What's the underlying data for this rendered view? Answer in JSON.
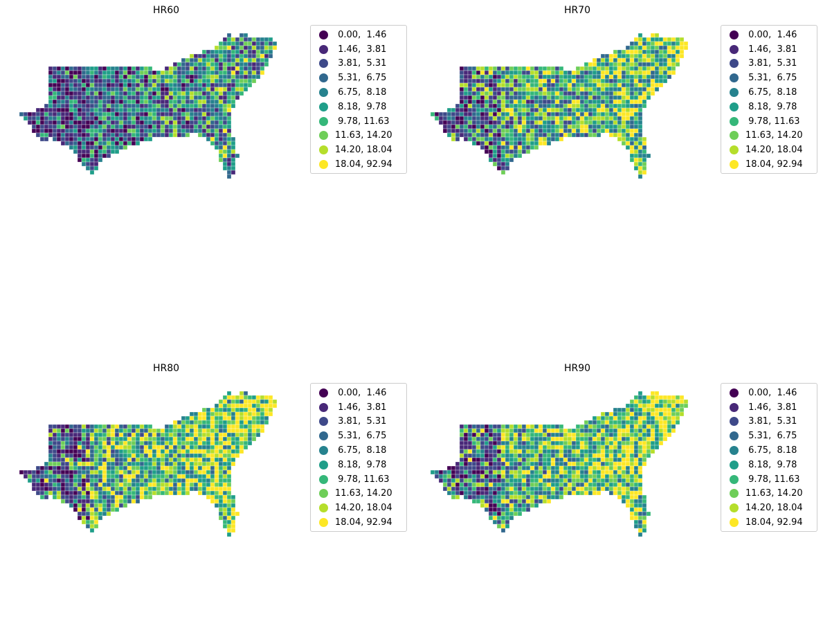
{
  "panels": [
    {
      "title": "HR60",
      "seed": 11
    },
    {
      "title": "HR70",
      "seed": 29
    },
    {
      "title": "HR80",
      "seed": 47
    },
    {
      "title": "HR90",
      "seed": 73
    }
  ],
  "legend": {
    "items": [
      {
        "label": " 0.00,  1.46",
        "color": "#440154"
      },
      {
        "label": " 1.46,  3.81",
        "color": "#482878"
      },
      {
        "label": " 3.81,  5.31",
        "color": "#3e4989"
      },
      {
        "label": " 5.31,  6.75",
        "color": "#31688e"
      },
      {
        "label": " 6.75,  8.18",
        "color": "#26828e"
      },
      {
        "label": " 8.18,  9.78",
        "color": "#1f9e89"
      },
      {
        "label": " 9.78, 11.63",
        "color": "#35b779"
      },
      {
        "label": "11.63, 14.20",
        "color": "#6ece58"
      },
      {
        "label": "14.20, 18.04",
        "color": "#b5de2b"
      },
      {
        "label": "18.04, 92.94",
        "color": "#fde725"
      }
    ]
  }
}
